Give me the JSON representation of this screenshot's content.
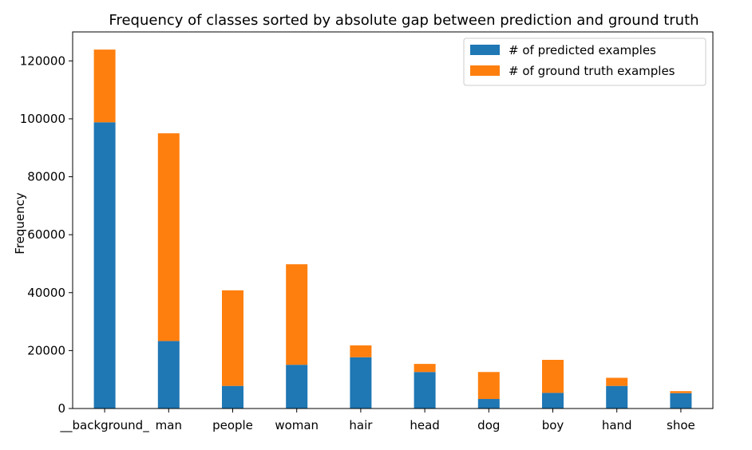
{
  "chart_data": {
    "type": "bar",
    "stacked": true,
    "title": "Frequency of classes sorted by absolute gap between prediction and ground truth",
    "xlabel": "",
    "ylabel": "Frequency",
    "categories": [
      "__background_",
      "man",
      "people",
      "woman",
      "hair",
      "head",
      "dog",
      "boy",
      "hand",
      "shoe"
    ],
    "series": [
      {
        "name": "# of predicted examples",
        "color": "#1f77b4",
        "values": [
          98800,
          23300,
          7800,
          15100,
          17700,
          12600,
          3300,
          5400,
          7800,
          5300
        ]
      },
      {
        "name": "# of ground truth examples",
        "color": "#ff7f0e",
        "values": [
          25100,
          71700,
          33000,
          34700,
          4100,
          2800,
          9300,
          11400,
          2800,
          700
        ]
      }
    ],
    "ylim": [
      0,
      130000
    ],
    "yticks": [
      0,
      20000,
      40000,
      60000,
      80000,
      100000,
      120000
    ],
    "ytick_labels": [
      "0",
      "20000",
      "40000",
      "60000",
      "80000",
      "100000",
      "120000"
    ],
    "grid": false,
    "legend_position": "top-right"
  }
}
